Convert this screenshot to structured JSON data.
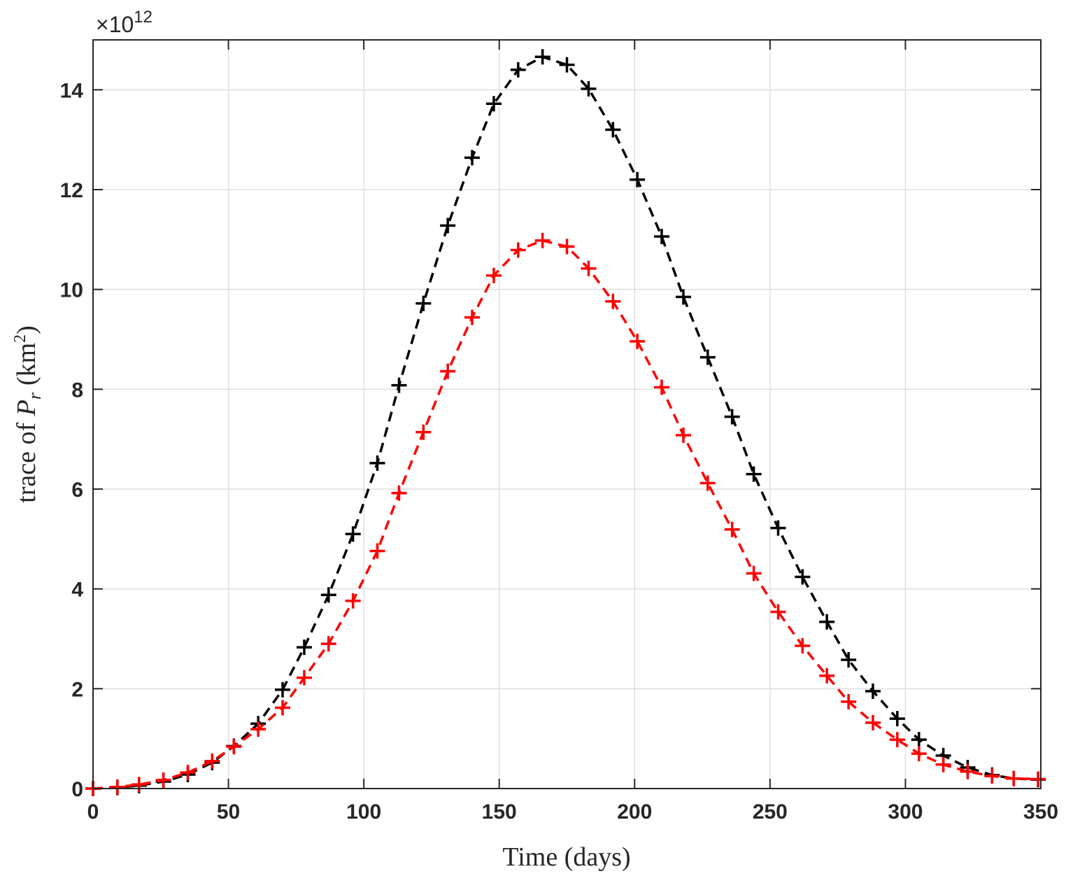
{
  "chart_data": {
    "type": "line",
    "xlabel": "Time (days)",
    "ylabel": {
      "prefix": "trace of ",
      "symbol": "P",
      "subscript": "r",
      "unit": "(km",
      "unit_sup": "2",
      "unit_close": ")"
    },
    "y_multiplier": {
      "prefix": "×10",
      "exponent": "12"
    },
    "xlim": [
      0,
      350
    ],
    "ylim": [
      0,
      15
    ],
    "xticks": [
      0,
      50,
      100,
      150,
      200,
      250,
      300,
      350
    ],
    "yticks": [
      0,
      2,
      4,
      6,
      8,
      10,
      12,
      14
    ],
    "grid": true,
    "series": [
      {
        "color": "#000000",
        "marker": "plus",
        "line_style": "dashed",
        "x": [
          0,
          9,
          17,
          26,
          35,
          44,
          52,
          61,
          70,
          78,
          87,
          96,
          105,
          113,
          122,
          131,
          140,
          148,
          157,
          166,
          175,
          183,
          192,
          201,
          210,
          218,
          227,
          236,
          244,
          253,
          262,
          271,
          279,
          288,
          297,
          305,
          314,
          323,
          332,
          340,
          349
        ],
        "y": [
          0.0,
          0.02,
          0.06,
          0.14,
          0.28,
          0.52,
          0.85,
          1.3,
          1.98,
          2.83,
          3.88,
          5.1,
          6.52,
          8.08,
          9.72,
          11.28,
          12.64,
          13.72,
          14.4,
          14.66,
          14.5,
          14.02,
          13.2,
          12.2,
          11.06,
          9.85,
          8.64,
          7.45,
          6.3,
          5.22,
          4.24,
          3.34,
          2.58,
          1.95,
          1.4,
          0.98,
          0.66,
          0.42,
          0.27,
          0.2,
          0.18
        ]
      },
      {
        "color": "#ff0000",
        "marker": "plus",
        "line_style": "dashed",
        "x": [
          0,
          9,
          17,
          26,
          35,
          44,
          52,
          61,
          70,
          78,
          87,
          96,
          105,
          113,
          122,
          131,
          140,
          148,
          157,
          166,
          175,
          183,
          192,
          201,
          210,
          218,
          227,
          236,
          244,
          253,
          262,
          271,
          279,
          288,
          297,
          305,
          314,
          323,
          332,
          340,
          349
        ],
        "y": [
          0.0,
          0.03,
          0.08,
          0.17,
          0.32,
          0.55,
          0.84,
          1.19,
          1.62,
          2.22,
          2.9,
          3.76,
          4.76,
          5.92,
          7.14,
          8.36,
          9.44,
          10.28,
          10.79,
          10.98,
          10.86,
          10.42,
          9.76,
          8.96,
          8.04,
          7.08,
          6.12,
          5.19,
          4.31,
          3.54,
          2.86,
          2.26,
          1.74,
          1.32,
          0.98,
          0.7,
          0.48,
          0.34,
          0.25,
          0.2,
          0.19
        ]
      }
    ]
  }
}
